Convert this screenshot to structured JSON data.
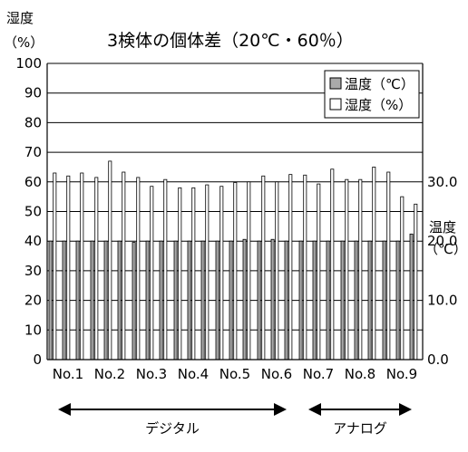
{
  "chart_data": {
    "type": "bar",
    "title": "3検体の個体差（20℃・60％）",
    "left_axis": {
      "label_line1": "湿度",
      "label_line2": "（%）",
      "range": [
        0,
        100
      ],
      "ticks": [
        "0",
        "10",
        "20",
        "30",
        "40",
        "50",
        "60",
        "70",
        "80",
        "90",
        "100"
      ]
    },
    "right_axis": {
      "label_line1": "温度",
      "label_line2": "（℃）",
      "range": [
        0,
        50
      ],
      "ticks": [
        "0.0",
        "10.0",
        "20.0",
        "30.0"
      ]
    },
    "categories": [
      "No.1",
      "No.2",
      "No.3",
      "No.4",
      "No.5",
      "No.6",
      "No.7",
      "No.8",
      "No.9"
    ],
    "series": [
      {
        "name": "温度（℃）",
        "color": "#aaaaaa",
        "values": [
          [
            20.0,
            20.0,
            20.0
          ],
          [
            20.0,
            20.0,
            20.0
          ],
          [
            19.8,
            20.0,
            20.0
          ],
          [
            20.0,
            20.0,
            20.0
          ],
          [
            20.0,
            20.0,
            20.3
          ],
          [
            20.0,
            20.3,
            20.0
          ],
          [
            20.0,
            20.0,
            20.0
          ],
          [
            20.0,
            20.0,
            20.0
          ],
          [
            20.0,
            20.0,
            21.2
          ]
        ]
      },
      {
        "name": "湿度（%）",
        "color": "#ffffff",
        "values": [
          [
            63,
            62,
            63
          ],
          [
            61.5,
            67,
            63.3
          ],
          [
            61.5,
            58.5,
            60.8
          ],
          [
            58,
            58,
            59
          ],
          [
            58.5,
            59.8,
            60
          ],
          [
            62,
            60,
            62.5
          ],
          [
            62.3,
            59.3,
            64.3
          ],
          [
            60.8,
            60.8,
            65
          ],
          [
            63.3,
            55,
            52.5
          ]
        ]
      }
    ],
    "groups": [
      {
        "label": "デジタル",
        "from": 0,
        "to": 5
      },
      {
        "label": "アナログ",
        "from": 6,
        "to": 8
      }
    ],
    "legend": {
      "position": "top-right"
    },
    "grid": true
  }
}
